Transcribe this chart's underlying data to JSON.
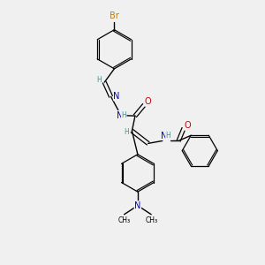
{
  "background_color": "#f0f0f0",
  "bond_color": "#000000",
  "atom_colors": {
    "Br": "#cc7700",
    "N": "#0000cc",
    "O": "#cc0000",
    "H": "#4a9090",
    "C": "#000000"
  },
  "figsize": [
    3.0,
    3.0
  ],
  "dpi": 100
}
